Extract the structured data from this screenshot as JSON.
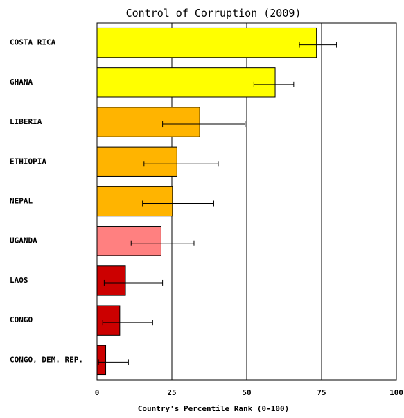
{
  "chart_data": {
    "type": "bar",
    "orientation": "horizontal",
    "title": "Control of Corruption (2009)",
    "xlabel": "Country's Percentile Rank (0-100)",
    "ylabel": "",
    "xlim": [
      0,
      100
    ],
    "xticks": [
      0,
      25,
      50,
      75,
      100
    ],
    "grid": true,
    "error_bars": true,
    "categories": [
      "COSTA RICA",
      "GHANA",
      "LIBERIA",
      "ETHIOPIA",
      "NEPAL",
      "UGANDA",
      "LAOS",
      "CONGO",
      "CONGO, DEM. REP."
    ],
    "values": [
      73.3,
      59.5,
      34.3,
      26.7,
      25.2,
      21.4,
      9.5,
      7.6,
      2.9
    ],
    "error_low": [
      67.6,
      52.4,
      21.9,
      15.7,
      15.2,
      11.4,
      2.4,
      1.9,
      0.5
    ],
    "error_high": [
      80.0,
      65.7,
      49.5,
      40.5,
      39.0,
      32.4,
      21.9,
      18.6,
      10.5
    ],
    "colors": [
      "#ffff00",
      "#ffff00",
      "#ffb400",
      "#ffb400",
      "#ffb400",
      "#ff8080",
      "#cc0000",
      "#cc0000",
      "#cc0000"
    ]
  }
}
